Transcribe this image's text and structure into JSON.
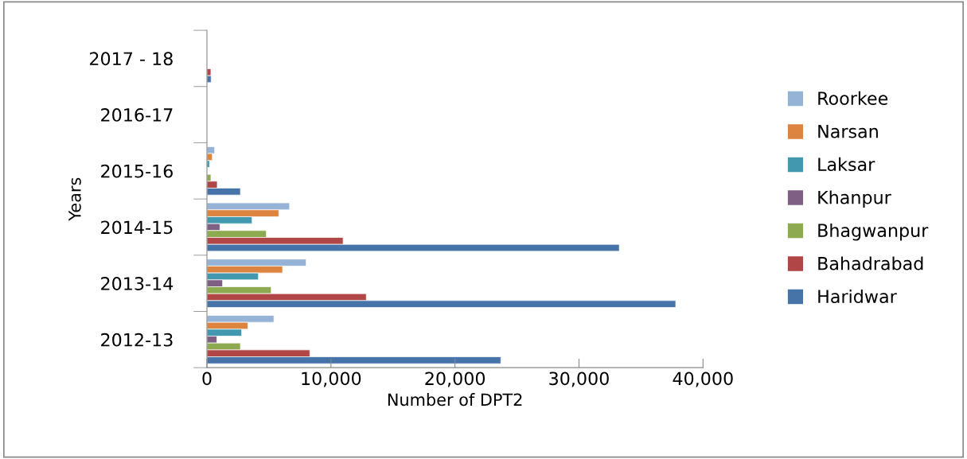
{
  "chart_data": {
    "type": "bar",
    "orientation": "horizontal",
    "xlabel": "Number of DPT2",
    "ylabel": "Years",
    "categories": [
      "2017 - 18",
      "2016-17",
      "2015-16",
      "2014-15",
      "2013-14",
      "2012-13"
    ],
    "series": [
      {
        "name": "Roorkee",
        "color": "#95b3d7",
        "values": [
          null,
          null,
          620,
          6660,
          8000,
          5400
        ]
      },
      {
        "name": "Narsan",
        "color": "#dd8440",
        "values": [
          null,
          null,
          430,
          5800,
          6100,
          3300
        ]
      },
      {
        "name": "Laksar",
        "color": "#4198af",
        "values": [
          null,
          null,
          210,
          3640,
          4150,
          2800
        ]
      },
      {
        "name": "Khanpur",
        "color": "#7f6084",
        "values": [
          null,
          null,
          null,
          1050,
          1260,
          800
        ]
      },
      {
        "name": "Bhagwanpur",
        "color": "#8eaa50",
        "values": [
          null,
          null,
          320,
          4790,
          5180,
          2700
        ]
      },
      {
        "name": "Bahadrabad",
        "color": "#b04645",
        "values": [
          320,
          null,
          830,
          10980,
          12850,
          8300
        ]
      },
      {
        "name": "Haridwar",
        "color": "#4674a8",
        "values": [
          340,
          null,
          2700,
          33250,
          37800,
          23700
        ]
      }
    ],
    "xlim": [
      0,
      40000
    ],
    "xticks": [
      0,
      {
        "value": 10000,
        "label": "10,000"
      },
      {
        "value": 20000,
        "label": "20,000"
      },
      {
        "value": 30000,
        "label": "30,000"
      },
      {
        "value": 40000,
        "label": "40,000"
      }
    ],
    "grid": false,
    "legend": "right"
  }
}
